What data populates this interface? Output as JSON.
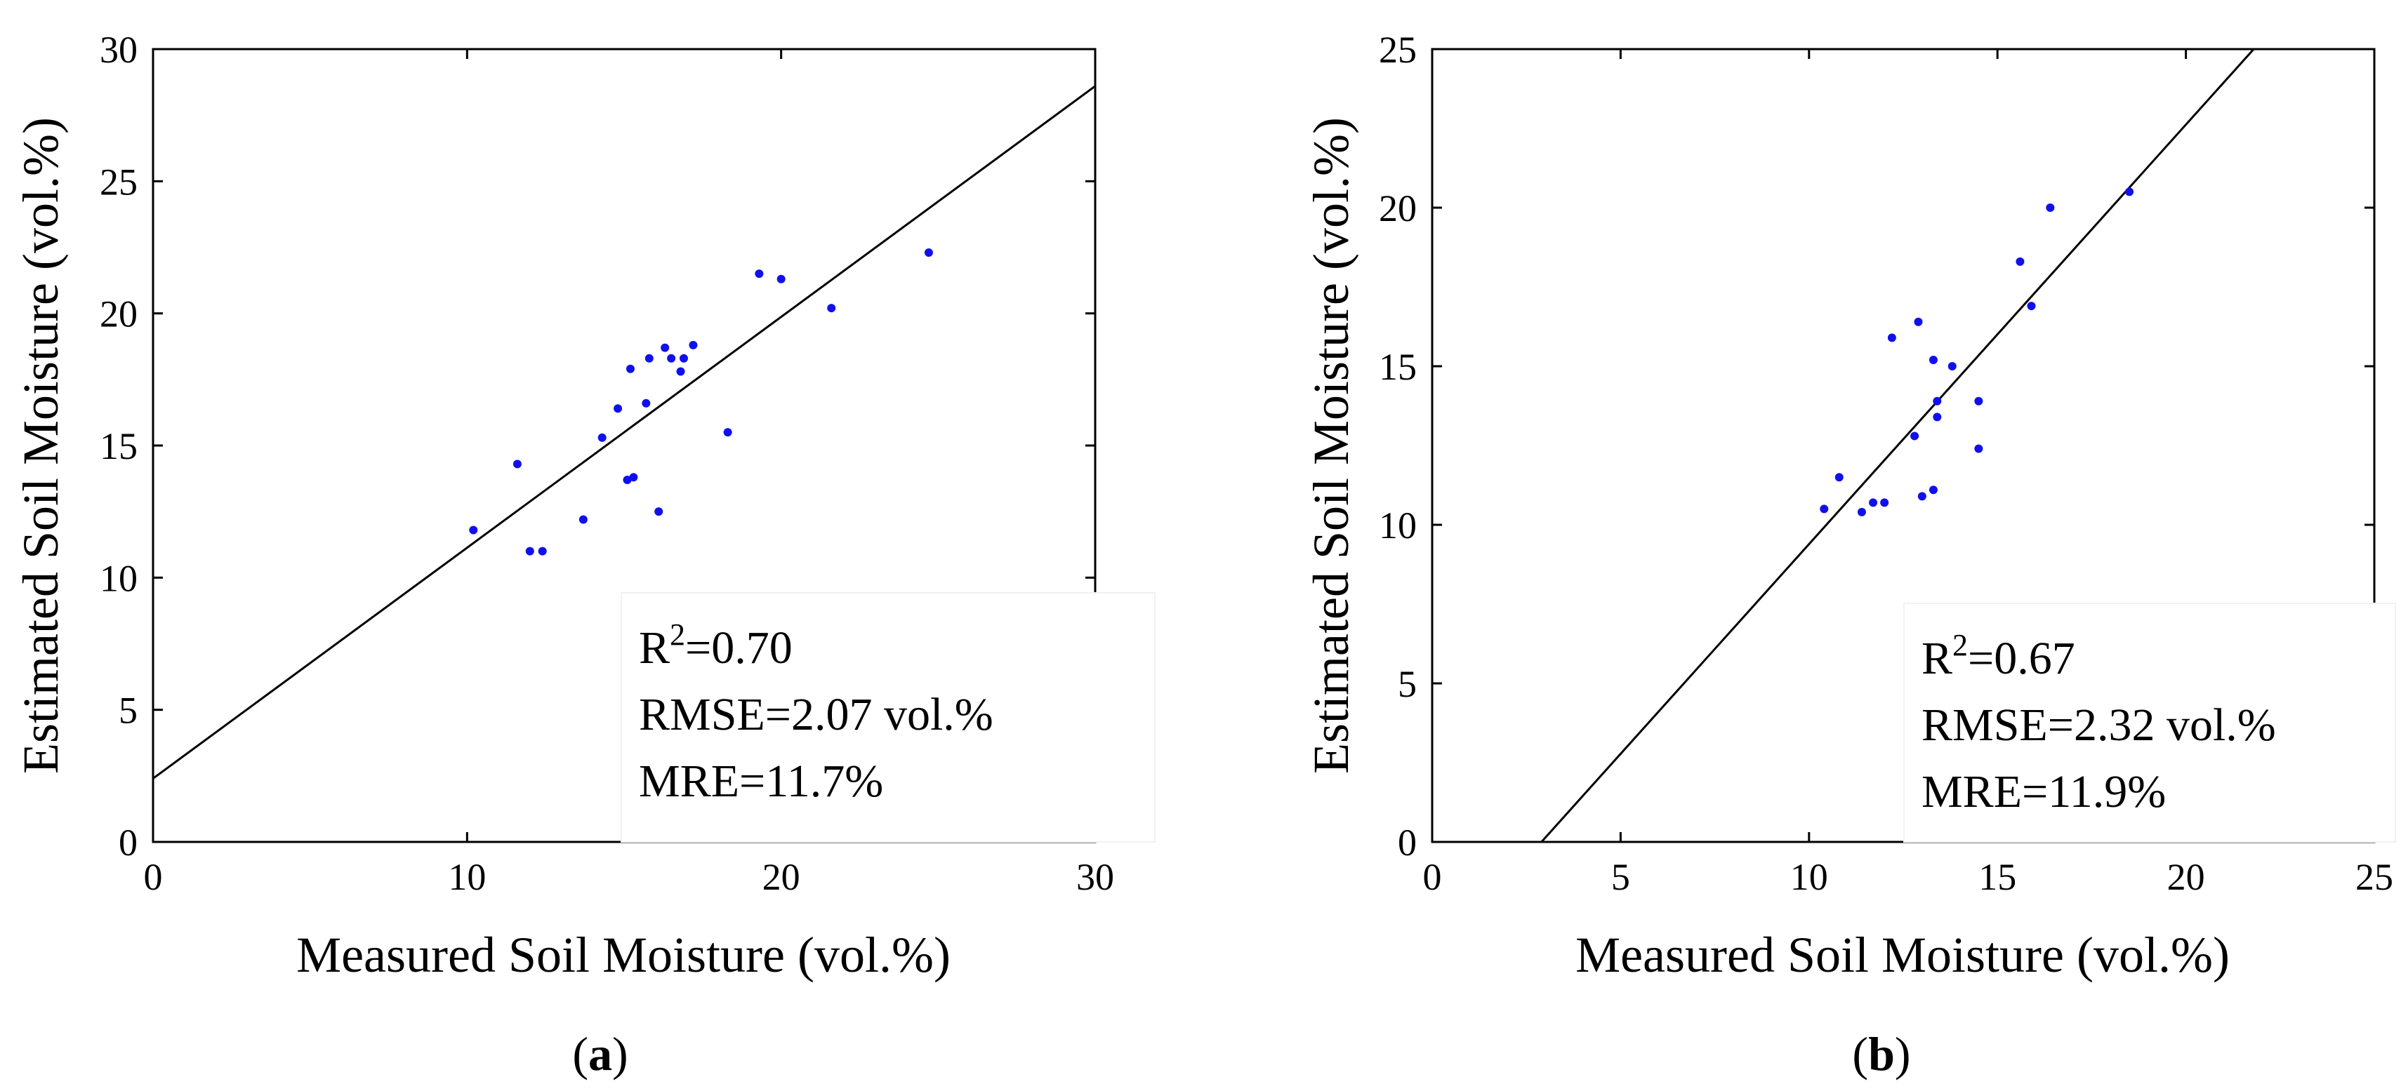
{
  "colors": {
    "points": "#1010ee",
    "line": "#000000",
    "axis": "#000000"
  },
  "chart_data": [
    {
      "type": "scatter",
      "panel": "a",
      "caption_open": "(",
      "caption_letter": "a",
      "caption_close": ")",
      "xlabel": "Measured Soil Moisture (vol.%)",
      "ylabel": "Estimated Soil Moisture (vol.%)",
      "xlim": [
        0,
        30
      ],
      "ylim": [
        0,
        30
      ],
      "xticks": [
        0,
        10,
        20,
        30
      ],
      "yticks": [
        0,
        5,
        10,
        15,
        20,
        25,
        30
      ],
      "x": [
        10.2,
        11.6,
        12.0,
        12.4,
        13.7,
        14.3,
        14.8,
        15.1,
        15.2,
        15.3,
        15.7,
        15.8,
        16.1,
        16.3,
        16.5,
        16.8,
        16.9,
        17.2,
        18.3,
        19.3,
        20.0,
        21.6,
        24.7
      ],
      "y": [
        11.8,
        14.3,
        11.0,
        11.0,
        12.2,
        15.3,
        16.4,
        13.7,
        17.9,
        13.8,
        16.6,
        18.3,
        12.5,
        18.7,
        18.3,
        17.8,
        18.3,
        18.8,
        15.5,
        21.5,
        21.3,
        20.2,
        22.3
      ],
      "fit_line": {
        "x": [
          0,
          30
        ],
        "y": [
          2.4,
          28.6
        ]
      },
      "stats": {
        "r2_label": "R",
        "r2_sup": "2",
        "r2_value": "=0.70",
        "rmse": "RMSE=2.07 vol.%",
        "mre": "MRE=11.7%"
      },
      "legend": "bottom-right"
    },
    {
      "type": "scatter",
      "panel": "b",
      "caption_open": "(",
      "caption_letter": "b",
      "caption_close": ")",
      "xlabel": "Measured Soil Moisture (vol.%)",
      "ylabel": "Estimated Soil Moisture (vol.%)",
      "xlim": [
        0,
        25
      ],
      "ylim": [
        0,
        25
      ],
      "xticks": [
        0,
        5,
        10,
        15,
        20,
        25
      ],
      "yticks": [
        0,
        5,
        10,
        15,
        20,
        25
      ],
      "x": [
        10.4,
        10.8,
        11.4,
        11.7,
        12.0,
        12.2,
        12.8,
        12.9,
        13.0,
        13.3,
        13.3,
        13.4,
        13.4,
        13.8,
        14.5,
        14.5,
        15.6,
        15.9,
        16.4,
        18.5
      ],
      "y": [
        10.5,
        11.5,
        10.4,
        10.7,
        10.7,
        15.9,
        12.8,
        16.4,
        10.9,
        11.1,
        15.2,
        13.4,
        13.9,
        15.0,
        12.4,
        13.9,
        18.3,
        16.9,
        20.0,
        20.5
      ],
      "fit_line": {
        "x": [
          2.9,
          21.8
        ],
        "y": [
          0,
          25
        ]
      },
      "stats": {
        "r2_label": "R",
        "r2_sup": "2",
        "r2_value": "=0.67",
        "rmse": "RMSE=2.32 vol.%",
        "mre": "MRE=11.9%"
      },
      "legend": "bottom-right"
    }
  ]
}
